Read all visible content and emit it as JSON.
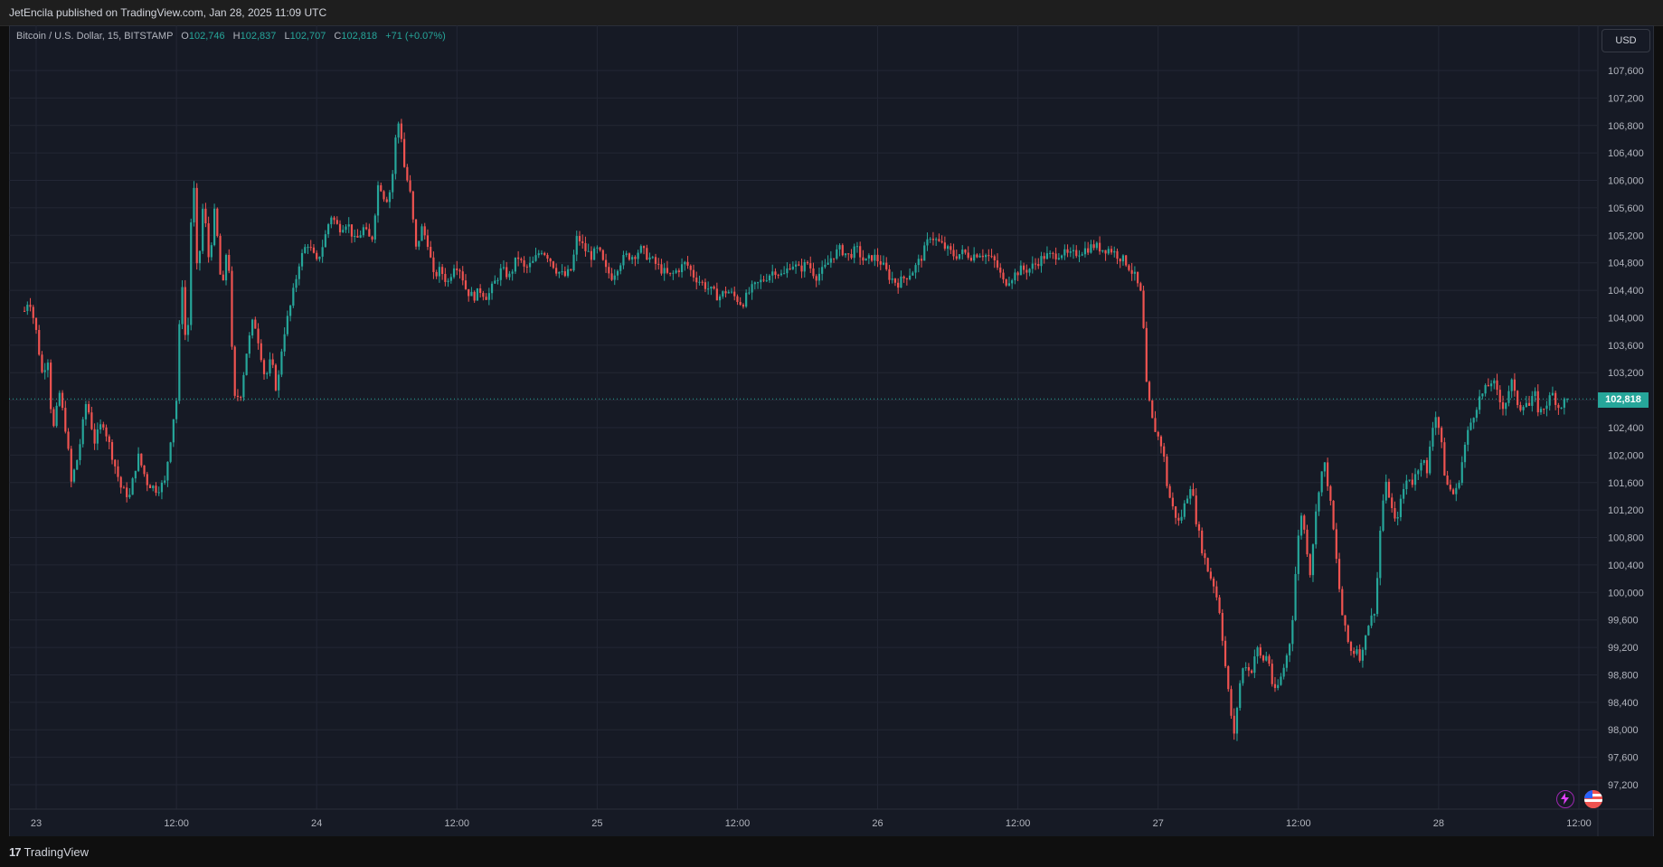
{
  "header": {
    "published_text": "JetEncila published on TradingView.com, Jan 28, 2025 11:09 UTC"
  },
  "legend": {
    "symbol": "Bitcoin / U.S. Dollar, 15, BITSTAMP",
    "open_label": "O",
    "open_value": "102,746",
    "high_label": "H",
    "high_value": "102,837",
    "low_label": "L",
    "low_value": "102,707",
    "close_label": "C",
    "close_value": "102,818",
    "change": "+71 (+0.07%)"
  },
  "currency": "USD",
  "last_price_label": "102,818",
  "footer": {
    "brand": "TradingView",
    "logo": "17"
  },
  "colors": {
    "up": "#26a69a",
    "down": "#ef5350",
    "background": "#161a25",
    "grid": "#232735",
    "text": "#b2b5be"
  },
  "icons": [
    "lightning-icon",
    "us-flag-icon",
    "tradingview-logo-icon"
  ],
  "chart_data": {
    "type": "candlestick",
    "symbol": "Bitcoin / U.S. Dollar",
    "timeframe": "15",
    "exchange": "BITSTAMP",
    "ylim": [
      97000,
      107900
    ],
    "y_ticks": [
      97200,
      97600,
      98000,
      98400,
      98800,
      99200,
      99600,
      100000,
      100400,
      100800,
      101200,
      101600,
      102000,
      102400,
      102800,
      103200,
      103600,
      104000,
      104400,
      104800,
      105200,
      105600,
      106000,
      106400,
      106800,
      107200,
      107600
    ],
    "y_tick_labels": [
      "97,200",
      "97,600",
      "98,000",
      "98,400",
      "98,800",
      "99,200",
      "99,600",
      "100,000",
      "100,400",
      "100,800",
      "101,200",
      "101,600",
      "102,000",
      "102,400",
      "102,800",
      "103,200",
      "103,600",
      "104,000",
      "104,400",
      "104,800",
      "105,200",
      "105,600",
      "106,000",
      "106,400",
      "106,800",
      "107,200",
      "107,600"
    ],
    "x_ticks": [
      {
        "label": "23",
        "hours": 6
      },
      {
        "label": "12:00",
        "hours": 18
      },
      {
        "label": "24",
        "hours": 30
      },
      {
        "label": "12:00",
        "hours": 42
      },
      {
        "label": "25",
        "hours": 54
      },
      {
        "label": "12:00",
        "hours": 66
      },
      {
        "label": "26",
        "hours": 78
      },
      {
        "label": "12:00",
        "hours": 90
      },
      {
        "label": "27",
        "hours": 102
      },
      {
        "label": "12:00",
        "hours": 114
      },
      {
        "label": "28",
        "hours": 126
      },
      {
        "label": "12:00",
        "hours": 138
      }
    ],
    "x_range_hours": [
      5,
      141.2
    ],
    "last_price": 102818,
    "price_path": [
      {
        "t": 5.0,
        "p": 104100
      },
      {
        "t": 5.4,
        "p": 104300
      },
      {
        "t": 6.0,
        "p": 103800
      },
      {
        "t": 6.5,
        "p": 103200
      },
      {
        "t": 7.0,
        "p": 103400
      },
      {
        "t": 7.4,
        "p": 102300
      },
      {
        "t": 8.0,
        "p": 102900
      },
      {
        "t": 8.6,
        "p": 102300
      },
      {
        "t": 9.0,
        "p": 101600
      },
      {
        "t": 9.6,
        "p": 102000
      },
      {
        "t": 10.3,
        "p": 102800
      },
      {
        "t": 11.0,
        "p": 102200
      },
      {
        "t": 11.7,
        "p": 102500
      },
      {
        "t": 12.5,
        "p": 102000
      },
      {
        "t": 13.3,
        "p": 101500
      },
      {
        "t": 14.0,
        "p": 101400
      },
      {
        "t": 14.7,
        "p": 102000
      },
      {
        "t": 15.5,
        "p": 101600
      },
      {
        "t": 16.3,
        "p": 101500
      },
      {
        "t": 17.0,
        "p": 101600
      },
      {
        "t": 17.7,
        "p": 102500
      },
      {
        "t": 18.1,
        "p": 102900
      },
      {
        "t": 18.4,
        "p": 104800
      },
      {
        "t": 18.9,
        "p": 103300
      },
      {
        "t": 19.4,
        "p": 106300
      },
      {
        "t": 19.8,
        "p": 104500
      },
      {
        "t": 20.3,
        "p": 105700
      },
      {
        "t": 20.8,
        "p": 104800
      },
      {
        "t": 21.3,
        "p": 105600
      },
      {
        "t": 21.9,
        "p": 104300
      },
      {
        "t": 22.4,
        "p": 105200
      },
      {
        "t": 22.9,
        "p": 102800
      },
      {
        "t": 23.5,
        "p": 102900
      },
      {
        "t": 24.0,
        "p": 103500
      },
      {
        "t": 24.6,
        "p": 104000
      },
      {
        "t": 25.1,
        "p": 103600
      },
      {
        "t": 25.6,
        "p": 103100
      },
      {
        "t": 26.1,
        "p": 103400
      },
      {
        "t": 26.6,
        "p": 102900
      },
      {
        "t": 27.1,
        "p": 103700
      },
      {
        "t": 27.8,
        "p": 104200
      },
      {
        "t": 28.5,
        "p": 104800
      },
      {
        "t": 29.2,
        "p": 105100
      },
      {
        "t": 30.0,
        "p": 104800
      },
      {
        "t": 30.6,
        "p": 105100
      },
      {
        "t": 31.2,
        "p": 105500
      },
      {
        "t": 31.9,
        "p": 105300
      },
      {
        "t": 32.6,
        "p": 105400
      },
      {
        "t": 33.3,
        "p": 105100
      },
      {
        "t": 34.0,
        "p": 105300
      },
      {
        "t": 34.7,
        "p": 105100
      },
      {
        "t": 35.3,
        "p": 106000
      },
      {
        "t": 35.9,
        "p": 105700
      },
      {
        "t": 36.4,
        "p": 105900
      },
      {
        "t": 36.8,
        "p": 106700
      },
      {
        "t": 37.1,
        "p": 106900
      },
      {
        "t": 37.5,
        "p": 106200
      },
      {
        "t": 38.0,
        "p": 105800
      },
      {
        "t": 38.5,
        "p": 105000
      },
      {
        "t": 39.0,
        "p": 105300
      },
      {
        "t": 39.5,
        "p": 105100
      },
      {
        "t": 40.0,
        "p": 104600
      },
      {
        "t": 40.6,
        "p": 104700
      },
      {
        "t": 41.2,
        "p": 104500
      },
      {
        "t": 41.8,
        "p": 104800
      },
      {
        "t": 42.3,
        "p": 104700
      },
      {
        "t": 42.8,
        "p": 104400
      },
      {
        "t": 43.4,
        "p": 104300
      },
      {
        "t": 44.0,
        "p": 104400
      },
      {
        "t": 44.6,
        "p": 104300
      },
      {
        "t": 45.2,
        "p": 104500
      },
      {
        "t": 45.8,
        "p": 104700
      },
      {
        "t": 46.5,
        "p": 104600
      },
      {
        "t": 47.2,
        "p": 104900
      },
      {
        "t": 47.8,
        "p": 104700
      },
      {
        "t": 48.5,
        "p": 104800
      },
      {
        "t": 49.2,
        "p": 105000
      },
      {
        "t": 49.8,
        "p": 104900
      },
      {
        "t": 50.5,
        "p": 104700
      },
      {
        "t": 51.2,
        "p": 104600
      },
      {
        "t": 51.8,
        "p": 104700
      },
      {
        "t": 52.3,
        "p": 105200
      },
      {
        "t": 52.9,
        "p": 105000
      },
      {
        "t": 53.5,
        "p": 104900
      },
      {
        "t": 54.1,
        "p": 105000
      },
      {
        "t": 54.7,
        "p": 104700
      },
      {
        "t": 55.3,
        "p": 104600
      },
      {
        "t": 55.9,
        "p": 104800
      },
      {
        "t": 56.5,
        "p": 104900
      },
      {
        "t": 57.1,
        "p": 104900
      },
      {
        "t": 57.7,
        "p": 105000
      },
      {
        "t": 58.3,
        "p": 104900
      },
      {
        "t": 58.9,
        "p": 104800
      },
      {
        "t": 59.5,
        "p": 104700
      },
      {
        "t": 60.2,
        "p": 104600
      },
      {
        "t": 60.9,
        "p": 104700
      },
      {
        "t": 61.6,
        "p": 104800
      },
      {
        "t": 62.3,
        "p": 104600
      },
      {
        "t": 63.0,
        "p": 104500
      },
      {
        "t": 63.7,
        "p": 104400
      },
      {
        "t": 64.4,
        "p": 104300
      },
      {
        "t": 65.1,
        "p": 104400
      },
      {
        "t": 65.8,
        "p": 104300
      },
      {
        "t": 66.4,
        "p": 104200
      },
      {
        "t": 67.1,
        "p": 104400
      },
      {
        "t": 67.8,
        "p": 104500
      },
      {
        "t": 68.5,
        "p": 104600
      },
      {
        "t": 69.2,
        "p": 104700
      },
      {
        "t": 69.9,
        "p": 104600
      },
      {
        "t": 70.6,
        "p": 104800
      },
      {
        "t": 71.3,
        "p": 104700
      },
      {
        "t": 72.0,
        "p": 104800
      },
      {
        "t": 72.7,
        "p": 104600
      },
      {
        "t": 73.4,
        "p": 104700
      },
      {
        "t": 74.1,
        "p": 104900
      },
      {
        "t": 74.8,
        "p": 105000
      },
      {
        "t": 75.5,
        "p": 104900
      },
      {
        "t": 76.2,
        "p": 105000
      },
      {
        "t": 76.9,
        "p": 104800
      },
      {
        "t": 77.6,
        "p": 104900
      },
      {
        "t": 78.3,
        "p": 104800
      },
      {
        "t": 79.0,
        "p": 104600
      },
      {
        "t": 79.7,
        "p": 104500
      },
      {
        "t": 80.4,
        "p": 104600
      },
      {
        "t": 81.1,
        "p": 104700
      },
      {
        "t": 81.8,
        "p": 104900
      },
      {
        "t": 82.5,
        "p": 105200
      },
      {
        "t": 83.2,
        "p": 105100
      },
      {
        "t": 83.9,
        "p": 105000
      },
      {
        "t": 84.6,
        "p": 104900
      },
      {
        "t": 85.3,
        "p": 104950
      },
      {
        "t": 86.0,
        "p": 104900
      },
      {
        "t": 86.7,
        "p": 104950
      },
      {
        "t": 87.4,
        "p": 104900
      },
      {
        "t": 88.1,
        "p": 104800
      },
      {
        "t": 88.8,
        "p": 104500
      },
      {
        "t": 89.5,
        "p": 104600
      },
      {
        "t": 90.2,
        "p": 104700
      },
      {
        "t": 90.9,
        "p": 104700
      },
      {
        "t": 91.6,
        "p": 104800
      },
      {
        "t": 92.3,
        "p": 104900
      },
      {
        "t": 93.0,
        "p": 104900
      },
      {
        "t": 93.7,
        "p": 104950
      },
      {
        "t": 94.4,
        "p": 104900
      },
      {
        "t": 95.1,
        "p": 104950
      },
      {
        "t": 95.8,
        "p": 105000
      },
      {
        "t": 96.5,
        "p": 105050
      },
      {
        "t": 97.2,
        "p": 105000
      },
      {
        "t": 97.9,
        "p": 105000
      },
      {
        "t": 98.6,
        "p": 104900
      },
      {
        "t": 99.3,
        "p": 104800
      },
      {
        "t": 100.0,
        "p": 104600
      },
      {
        "t": 100.6,
        "p": 104300
      },
      {
        "t": 101.0,
        "p": 103000
      },
      {
        "t": 101.5,
        "p": 102500
      },
      {
        "t": 101.9,
        "p": 102300
      },
      {
        "t": 102.4,
        "p": 102100
      },
      {
        "t": 102.8,
        "p": 101500
      },
      {
        "t": 103.3,
        "p": 101200
      },
      {
        "t": 103.8,
        "p": 101000
      },
      {
        "t": 104.3,
        "p": 101300
      },
      {
        "t": 104.8,
        "p": 101600
      },
      {
        "t": 105.3,
        "p": 101000
      },
      {
        "t": 105.8,
        "p": 100600
      },
      {
        "t": 106.3,
        "p": 100300
      },
      {
        "t": 106.8,
        "p": 100100
      },
      {
        "t": 107.3,
        "p": 99700
      },
      {
        "t": 107.7,
        "p": 99000
      },
      {
        "t": 108.1,
        "p": 98400
      },
      {
        "t": 108.5,
        "p": 97900
      },
      {
        "t": 108.9,
        "p": 98600
      },
      {
        "t": 109.4,
        "p": 99000
      },
      {
        "t": 109.9,
        "p": 98800
      },
      {
        "t": 110.4,
        "p": 99200
      },
      {
        "t": 110.9,
        "p": 99000
      },
      {
        "t": 111.4,
        "p": 99100
      },
      {
        "t": 111.9,
        "p": 98500
      },
      {
        "t": 112.4,
        "p": 98700
      },
      {
        "t": 112.9,
        "p": 99000
      },
      {
        "t": 113.4,
        "p": 99400
      },
      {
        "t": 113.8,
        "p": 100400
      },
      {
        "t": 114.2,
        "p": 101200
      },
      {
        "t": 114.6,
        "p": 100800
      },
      {
        "t": 115.0,
        "p": 100300
      },
      {
        "t": 115.4,
        "p": 101000
      },
      {
        "t": 115.8,
        "p": 101600
      },
      {
        "t": 116.2,
        "p": 101900
      },
      {
        "t": 116.6,
        "p": 101500
      },
      {
        "t": 117.0,
        "p": 100900
      },
      {
        "t": 117.4,
        "p": 100200
      },
      {
        "t": 117.8,
        "p": 99600
      },
      {
        "t": 118.2,
        "p": 99300
      },
      {
        "t": 118.6,
        "p": 99100
      },
      {
        "t": 119.0,
        "p": 99200
      },
      {
        "t": 119.4,
        "p": 99000
      },
      {
        "t": 119.8,
        "p": 99500
      },
      {
        "t": 120.2,
        "p": 99600
      },
      {
        "t": 120.6,
        "p": 99800
      },
      {
        "t": 121.0,
        "p": 100900
      },
      {
        "t": 121.4,
        "p": 101600
      },
      {
        "t": 121.8,
        "p": 101400
      },
      {
        "t": 122.2,
        "p": 101000
      },
      {
        "t": 122.6,
        "p": 101200
      },
      {
        "t": 123.0,
        "p": 101500
      },
      {
        "t": 123.4,
        "p": 101700
      },
      {
        "t": 123.8,
        "p": 101600
      },
      {
        "t": 124.2,
        "p": 101800
      },
      {
        "t": 124.6,
        "p": 102000
      },
      {
        "t": 125.0,
        "p": 101700
      },
      {
        "t": 125.4,
        "p": 102400
      },
      {
        "t": 125.8,
        "p": 102600
      },
      {
        "t": 126.2,
        "p": 102200
      },
      {
        "t": 126.6,
        "p": 101600
      },
      {
        "t": 127.0,
        "p": 101500
      },
      {
        "t": 127.4,
        "p": 101400
      },
      {
        "t": 127.8,
        "p": 101700
      },
      {
        "t": 128.2,
        "p": 102100
      },
      {
        "t": 128.6,
        "p": 102400
      },
      {
        "t": 129.0,
        "p": 102600
      },
      {
        "t": 129.4,
        "p": 102800
      },
      {
        "t": 129.8,
        "p": 102900
      },
      {
        "t": 130.2,
        "p": 103000
      },
      {
        "t": 130.6,
        "p": 103100
      },
      {
        "t": 131.0,
        "p": 102900
      },
      {
        "t": 131.4,
        "p": 102700
      },
      {
        "t": 131.8,
        "p": 102800
      },
      {
        "t": 132.2,
        "p": 103100
      },
      {
        "t": 132.6,
        "p": 102800
      },
      {
        "t": 133.0,
        "p": 102700
      },
      {
        "t": 133.4,
        "p": 102800
      },
      {
        "t": 133.8,
        "p": 102700
      },
      {
        "t": 134.2,
        "p": 102900
      },
      {
        "t": 134.6,
        "p": 102600
      },
      {
        "t": 135.0,
        "p": 102700
      },
      {
        "t": 135.4,
        "p": 102800
      },
      {
        "t": 135.8,
        "p": 102900
      },
      {
        "t": 136.2,
        "p": 102700
      },
      {
        "t": 136.6,
        "p": 102750
      },
      {
        "t": 137.0,
        "p": 102818
      }
    ],
    "grid": true
  }
}
